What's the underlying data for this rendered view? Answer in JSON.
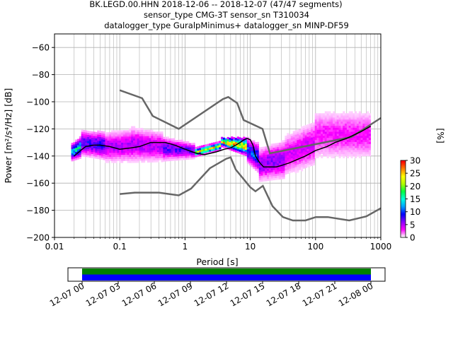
{
  "chart_data": {
    "type": "heatmap",
    "title_lines": [
      "BK.LEGD.00.HHN   2018-12-06 -- 2018-12-07  (47/47 segments)",
      "sensor_type CMG-3T sensor_sn T310034",
      "datalogger_type GuralpMinimus+ datalogger_sn MINP-DF59"
    ],
    "xlabel": "Period [s]",
    "ylabel": "Power [m²/s⁴/Hz] [dB]",
    "x_scale": "log",
    "xlim": [
      0.01,
      1000
    ],
    "ylim": [
      -200,
      -50
    ],
    "x_ticks": [
      {
        "value": 0.01,
        "label": "0.01"
      },
      {
        "value": 0.1,
        "label": "0.1"
      },
      {
        "value": 1,
        "label": "1"
      },
      {
        "value": 10,
        "label": "10"
      },
      {
        "value": 100,
        "label": "100"
      },
      {
        "value": 1000,
        "label": "1000"
      }
    ],
    "y_ticks": [
      {
        "value": -60,
        "label": "−60"
      },
      {
        "value": -80,
        "label": "−80"
      },
      {
        "value": -100,
        "label": "−100"
      },
      {
        "value": -120,
        "label": "−120"
      },
      {
        "value": -140,
        "label": "−140"
      },
      {
        "value": -160,
        "label": "−160"
      },
      {
        "value": -180,
        "label": "−180"
      },
      {
        "value": -200,
        "label": "−200"
      }
    ],
    "grid": true,
    "colorbar": {
      "label": "[%]",
      "range": [
        0,
        30
      ],
      "ticks": [
        {
          "value": 0,
          "label": "0"
        },
        {
          "value": 5,
          "label": "5"
        },
        {
          "value": 10,
          "label": "10"
        },
        {
          "value": 15,
          "label": "15"
        },
        {
          "value": 20,
          "label": "20"
        },
        {
          "value": 25,
          "label": "25"
        },
        {
          "value": 30,
          "label": "30"
        }
      ],
      "colors": [
        "#ffffff",
        "#ff00ff",
        "#8a00ff",
        "#0000ff",
        "#00a0ff",
        "#00ffe0",
        "#00ff40",
        "#b0ff00",
        "#ffff00",
        "#ff8000",
        "#ff0000"
      ]
    },
    "mode_line": {
      "color": "#000000",
      "x": [
        0.02,
        0.025,
        0.03,
        0.04,
        0.05,
        0.07,
        0.1,
        0.15,
        0.2,
        0.3,
        0.5,
        0.7,
        1,
        1.5,
        2,
        3,
        4,
        5,
        6,
        7,
        8,
        9,
        10,
        11,
        12,
        14,
        16,
        20,
        25,
        30,
        40,
        50,
        70,
        100,
        150,
        200,
        300,
        500,
        700
      ],
      "y": [
        -140,
        -136,
        -133,
        -132,
        -132,
        -133,
        -135,
        -134,
        -133,
        -130,
        -130,
        -132,
        -135,
        -138,
        -139,
        -137,
        -135,
        -134,
        -132,
        -130,
        -128,
        -127,
        -128,
        -132,
        -140,
        -145,
        -148,
        -148,
        -148,
        -147,
        -145,
        -143,
        -140,
        -136,
        -133,
        -130,
        -127,
        -122,
        -118
      ]
    },
    "noise_models": [
      {
        "name": "",
        "color": "#666666",
        "x": [
          0.1,
          0.22,
          0.32,
          0.8,
          3.8,
          4.6,
          6.3,
          7.9,
          15.4,
          20,
          354.8,
          1000
        ],
        "y": [
          -91.5,
          -97.4,
          -110.5,
          -120,
          -98,
          -96.5,
          -101,
          -113.5,
          -120,
          -138,
          -126,
          -112
        ]
      },
      {
        "name": "",
        "color": "#666666",
        "x": [
          0.1,
          0.17,
          0.4,
          0.8,
          1.24,
          2.4,
          4.3,
          5,
          6,
          10,
          12,
          15.6,
          21.9,
          31.6,
          45,
          70,
          101,
          154,
          328,
          600,
          1000
        ],
        "y": [
          -168,
          -167,
          -167,
          -169,
          -164,
          -149,
          -142,
          -141,
          -150,
          -163,
          -166,
          -162,
          -177,
          -185,
          -187.5,
          -187.5,
          -185,
          -185,
          -187.5,
          -184.5,
          -178.5
        ]
      }
    ],
    "density_bands": [
      {
        "x0": 0.018,
        "x1": 0.026,
        "center": -138,
        "halfwidth": 6,
        "peak": 14
      },
      {
        "x0": 0.026,
        "x1": 0.06,
        "center": -131,
        "halfwidth": 9,
        "peak": 8
      },
      {
        "x0": 0.06,
        "x1": 0.15,
        "center": -134,
        "halfwidth": 11,
        "peak": 5
      },
      {
        "x0": 0.15,
        "x1": 0.45,
        "center": -132,
        "halfwidth": 13,
        "peak": 5
      },
      {
        "x0": 0.45,
        "x1": 1.4,
        "center": -135,
        "halfwidth": 9,
        "peak": 7
      },
      {
        "x0": 1.4,
        "x1": 3.5,
        "center": -138,
        "halfwidth": 3,
        "peak": 22
      },
      {
        "x0": 3.5,
        "x1": 9,
        "center": -130,
        "halfwidth": 3,
        "peak": 25
      },
      {
        "x0": 9,
        "x1": 14,
        "center": -136,
        "halfwidth": 9,
        "peak": 10
      },
      {
        "x0": 14,
        "x1": 35,
        "center": -147,
        "halfwidth": 12,
        "peak": 6
      },
      {
        "x0": 35,
        "x1": 100,
        "center": -140,
        "halfwidth": 15,
        "peak": 4
      },
      {
        "x0": 100,
        "x1": 700,
        "center": -125,
        "halfwidth": 18,
        "peak": 3
      }
    ],
    "timeline": {
      "range_labels": [
        "12-07 00",
        "12-07 03",
        "12-07 06",
        "12-07 09",
        "12-07 12",
        "12-07 15",
        "12-07 18",
        "12-07 21",
        "12-08 00"
      ],
      "bands": [
        {
          "name": "",
          "color": "#008000"
        },
        {
          "name": "",
          "color": "#0000ff"
        }
      ],
      "data_fraction_start": 0.0,
      "data_fraction_end": 1.0
    }
  }
}
